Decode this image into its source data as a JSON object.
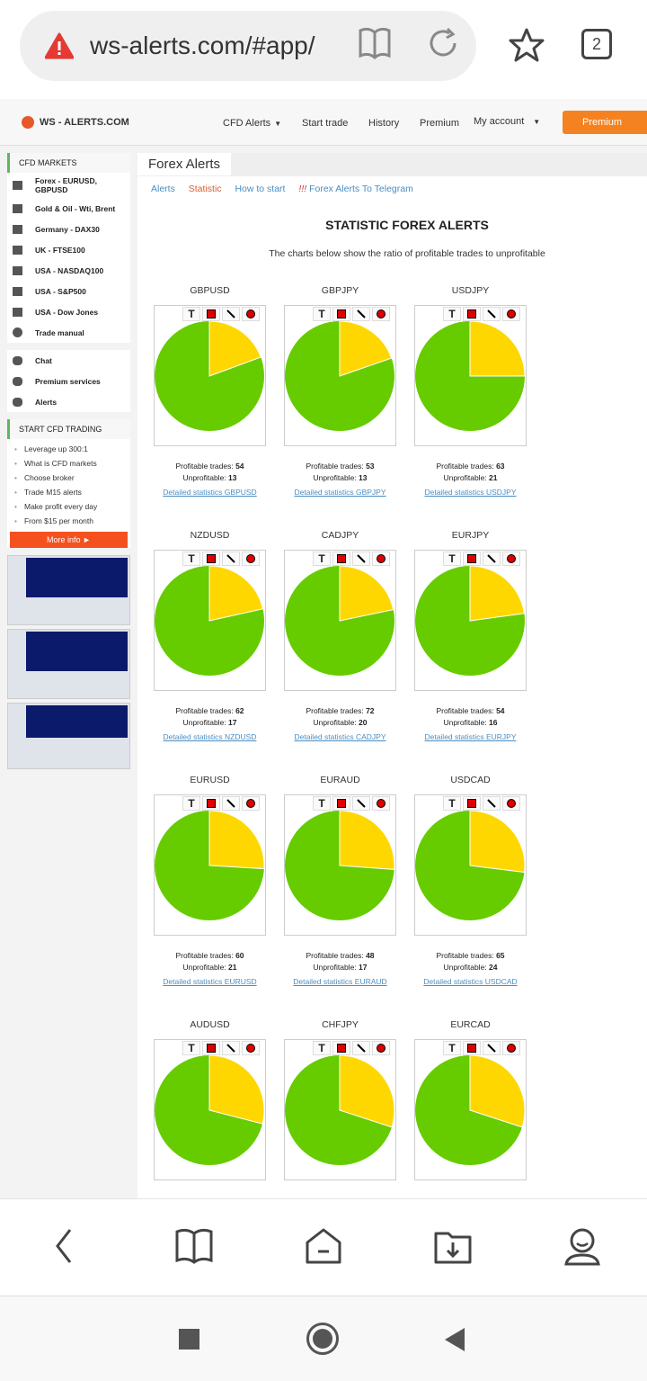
{
  "browser": {
    "url": "ws-alerts.com/#app/",
    "tab_count": "2"
  },
  "topnav": {
    "logo": "WS - ALERTS.COM",
    "items": [
      "CFD Alerts",
      "Start trade",
      "History",
      "Premium",
      "My account"
    ],
    "premium_button": "Premium"
  },
  "sidebar": {
    "markets_title": "CFD MARKETS",
    "markets": [
      "Forex - EURUSD, GBPUSD",
      "Gold & Oil - Wti, Brent",
      "Germany - DAX30",
      "UK - FTSE100",
      "USA - NASDAQ100",
      "USA - S&P500",
      "USA - Dow Jones",
      "Trade manual"
    ],
    "services": [
      "Chat",
      "Premium services",
      "Alerts"
    ],
    "start_title": "START CFD TRADING",
    "start_items": [
      "Leverage up 300:1",
      "What is CFD markets",
      "Choose broker",
      "Trade M15 alerts",
      "Make profit every day",
      "From $15 per month"
    ],
    "more_info": "More info ►"
  },
  "main": {
    "tab": "Forex Alerts",
    "links": [
      "Alerts",
      "Statistic",
      "How to start",
      "!!!",
      "Forex Alerts To Telegram"
    ],
    "title": "STATISTIC FOREX ALERTS",
    "description": "The charts below show the ratio of profitable trades to unprofitable",
    "profitable_label": "Profitable trades:",
    "unprofitable_label": "Unprofitable:",
    "tool_text": "T"
  },
  "chart_data": {
    "type": "pie",
    "colors": {
      "profitable": "#66cc00",
      "unprofitable": "#ffd700"
    },
    "pairs": [
      {
        "name": "GBPUSD",
        "profitable": 54,
        "unprofitable": 13,
        "link": "Detailed statistics GBPUSD"
      },
      {
        "name": "GBPJPY",
        "profitable": 53,
        "unprofitable": 13,
        "link": "Detailed statistics GBPJPY"
      },
      {
        "name": "USDJPY",
        "profitable": 63,
        "unprofitable": 21,
        "link": "Detailed statistics USDJPY"
      },
      {
        "name": "NZDUSD",
        "profitable": 62,
        "unprofitable": 17,
        "link": "Detailed statistics NZDUSD"
      },
      {
        "name": "CADJPY",
        "profitable": 72,
        "unprofitable": 20,
        "link": "Detailed statistics CADJPY"
      },
      {
        "name": "EURJPY",
        "profitable": 54,
        "unprofitable": 16,
        "link": "Detailed statistics EURJPY"
      },
      {
        "name": "EURUSD",
        "profitable": 60,
        "unprofitable": 21,
        "link": "Detailed statistics EURUSD"
      },
      {
        "name": "EURAUD",
        "profitable": 48,
        "unprofitable": 17,
        "link": "Detailed statistics EURAUD"
      },
      {
        "name": "USDCAD",
        "profitable": 65,
        "unprofitable": 24,
        "link": "Detailed statistics USDCAD"
      },
      {
        "name": "AUDUSD",
        "unprofitable_share": 0.29
      },
      {
        "name": "CHFJPY",
        "unprofitable_share": 0.3
      },
      {
        "name": "EURCAD",
        "unprofitable_share": 0.3
      }
    ]
  }
}
